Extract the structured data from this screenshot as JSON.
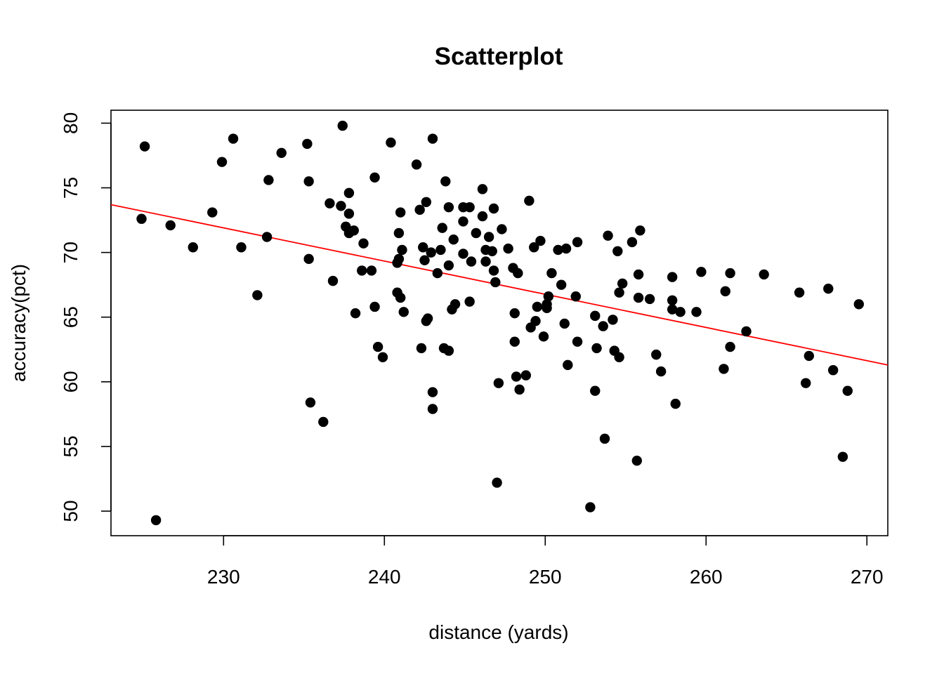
{
  "chart_data": {
    "type": "scatter",
    "title": "Scatterplot",
    "xlabel": "distance (yards)",
    "ylabel": "accuracy(pct)",
    "xlim": [
      223,
      271.3
    ],
    "ylim": [
      48.1,
      81.0
    ],
    "x_ticks": [
      230,
      240,
      250,
      260,
      270
    ],
    "y_ticks": [
      50,
      55,
      60,
      65,
      70,
      75,
      80
    ],
    "grid": false,
    "legend": "none",
    "colors": {
      "points": "#000000",
      "fit_line": "#ff0000",
      "axes": "#000000",
      "background": "#ffffff"
    },
    "fit_line": {
      "x": [
        223,
        271.3
      ],
      "y": [
        73.7,
        61.3
      ]
    },
    "points": [
      [
        224.9,
        72.6
      ],
      [
        225.1,
        78.2
      ],
      [
        225.8,
        49.3
      ],
      [
        226.7,
        72.1
      ],
      [
        228.1,
        70.4
      ],
      [
        229.3,
        73.1
      ],
      [
        229.9,
        77.0
      ],
      [
        230.6,
        78.8
      ],
      [
        231.1,
        70.4
      ],
      [
        232.1,
        66.7
      ],
      [
        232.7,
        71.2
      ],
      [
        232.8,
        75.6
      ],
      [
        233.6,
        77.7
      ],
      [
        235.2,
        78.4
      ],
      [
        235.3,
        75.5
      ],
      [
        235.3,
        69.5
      ],
      [
        235.4,
        58.4
      ],
      [
        236.2,
        56.9
      ],
      [
        236.6,
        73.8
      ],
      [
        236.8,
        67.8
      ],
      [
        237.3,
        73.6
      ],
      [
        237.4,
        79.8
      ],
      [
        237.6,
        72.0
      ],
      [
        237.8,
        74.6
      ],
      [
        237.8,
        73.0
      ],
      [
        237.8,
        71.5
      ],
      [
        238.1,
        71.7
      ],
      [
        238.2,
        65.3
      ],
      [
        238.6,
        68.6
      ],
      [
        238.7,
        70.7
      ],
      [
        239.2,
        68.6
      ],
      [
        239.4,
        75.8
      ],
      [
        239.4,
        65.8
      ],
      [
        239.6,
        62.7
      ],
      [
        239.9,
        61.9
      ],
      [
        240.4,
        78.5
      ],
      [
        240.8,
        66.9
      ],
      [
        240.8,
        69.2
      ],
      [
        240.9,
        69.5
      ],
      [
        240.9,
        71.5
      ],
      [
        241.0,
        73.1
      ],
      [
        241.0,
        66.5
      ],
      [
        241.1,
        70.2
      ],
      [
        241.2,
        65.4
      ],
      [
        242.0,
        76.8
      ],
      [
        242.2,
        73.3
      ],
      [
        242.3,
        62.6
      ],
      [
        242.4,
        70.4
      ],
      [
        242.5,
        69.4
      ],
      [
        242.6,
        64.7
      ],
      [
        242.6,
        73.9
      ],
      [
        242.7,
        64.9
      ],
      [
        242.9,
        70.0
      ],
      [
        243.0,
        78.8
      ],
      [
        243.0,
        59.2
      ],
      [
        243.0,
        57.9
      ],
      [
        243.3,
        68.4
      ],
      [
        243.5,
        70.2
      ],
      [
        243.6,
        71.9
      ],
      [
        243.7,
        62.6
      ],
      [
        243.8,
        75.5
      ],
      [
        244.0,
        73.5
      ],
      [
        244.0,
        69.0
      ],
      [
        244.0,
        62.4
      ],
      [
        244.2,
        65.6
      ],
      [
        244.3,
        71.0
      ],
      [
        244.4,
        66.0
      ],
      [
        244.9,
        69.9
      ],
      [
        244.9,
        72.4
      ],
      [
        244.9,
        73.5
      ],
      [
        245.3,
        73.5
      ],
      [
        245.3,
        66.2
      ],
      [
        245.4,
        69.3
      ],
      [
        245.7,
        71.5
      ],
      [
        246.1,
        74.9
      ],
      [
        246.1,
        72.8
      ],
      [
        246.3,
        70.2
      ],
      [
        246.3,
        69.3
      ],
      [
        246.5,
        71.2
      ],
      [
        246.7,
        70.1
      ],
      [
        246.8,
        68.6
      ],
      [
        246.8,
        73.4
      ],
      [
        246.9,
        67.7
      ],
      [
        247.0,
        52.2
      ],
      [
        247.1,
        59.9
      ],
      [
        247.3,
        71.8
      ],
      [
        247.7,
        70.3
      ],
      [
        248.0,
        68.8
      ],
      [
        248.1,
        63.1
      ],
      [
        248.1,
        65.3
      ],
      [
        248.2,
        60.4
      ],
      [
        248.3,
        68.4
      ],
      [
        248.4,
        59.4
      ],
      [
        248.8,
        60.5
      ],
      [
        249.0,
        74.0
      ],
      [
        249.1,
        64.2
      ],
      [
        249.3,
        70.4
      ],
      [
        249.4,
        64.7
      ],
      [
        249.5,
        65.8
      ],
      [
        249.7,
        70.9
      ],
      [
        249.9,
        63.5
      ],
      [
        250.1,
        65.7
      ],
      [
        250.1,
        66.0
      ],
      [
        250.2,
        66.6
      ],
      [
        250.4,
        68.4
      ],
      [
        250.8,
        70.2
      ],
      [
        251.0,
        67.5
      ],
      [
        251.2,
        64.5
      ],
      [
        251.3,
        70.3
      ],
      [
        251.4,
        61.3
      ],
      [
        251.9,
        66.6
      ],
      [
        252.0,
        70.8
      ],
      [
        252.0,
        63.1
      ],
      [
        252.8,
        50.3
      ],
      [
        253.1,
        65.1
      ],
      [
        253.1,
        59.3
      ],
      [
        253.2,
        62.6
      ],
      [
        253.6,
        64.3
      ],
      [
        253.7,
        55.6
      ],
      [
        253.9,
        71.3
      ],
      [
        254.2,
        64.8
      ],
      [
        254.3,
        62.4
      ],
      [
        254.5,
        70.1
      ],
      [
        254.6,
        66.9
      ],
      [
        254.6,
        61.9
      ],
      [
        254.8,
        67.6
      ],
      [
        255.4,
        70.8
      ],
      [
        255.7,
        53.9
      ],
      [
        255.8,
        66.5
      ],
      [
        255.8,
        68.3
      ],
      [
        255.9,
        71.7
      ],
      [
        256.5,
        66.4
      ],
      [
        256.9,
        62.1
      ],
      [
        257.2,
        60.8
      ],
      [
        257.9,
        68.1
      ],
      [
        257.9,
        66.3
      ],
      [
        257.9,
        65.6
      ],
      [
        258.1,
        58.3
      ],
      [
        258.4,
        65.4
      ],
      [
        259.4,
        65.4
      ],
      [
        259.7,
        68.5
      ],
      [
        261.1,
        61.0
      ],
      [
        261.2,
        67.0
      ],
      [
        261.5,
        68.4
      ],
      [
        261.5,
        62.7
      ],
      [
        262.5,
        63.9
      ],
      [
        263.6,
        68.3
      ],
      [
        265.8,
        66.9
      ],
      [
        266.2,
        59.9
      ],
      [
        266.4,
        62.0
      ],
      [
        267.6,
        67.2
      ],
      [
        267.9,
        60.9
      ],
      [
        268.5,
        54.2
      ],
      [
        268.8,
        59.3
      ],
      [
        269.5,
        66.0
      ]
    ]
  }
}
